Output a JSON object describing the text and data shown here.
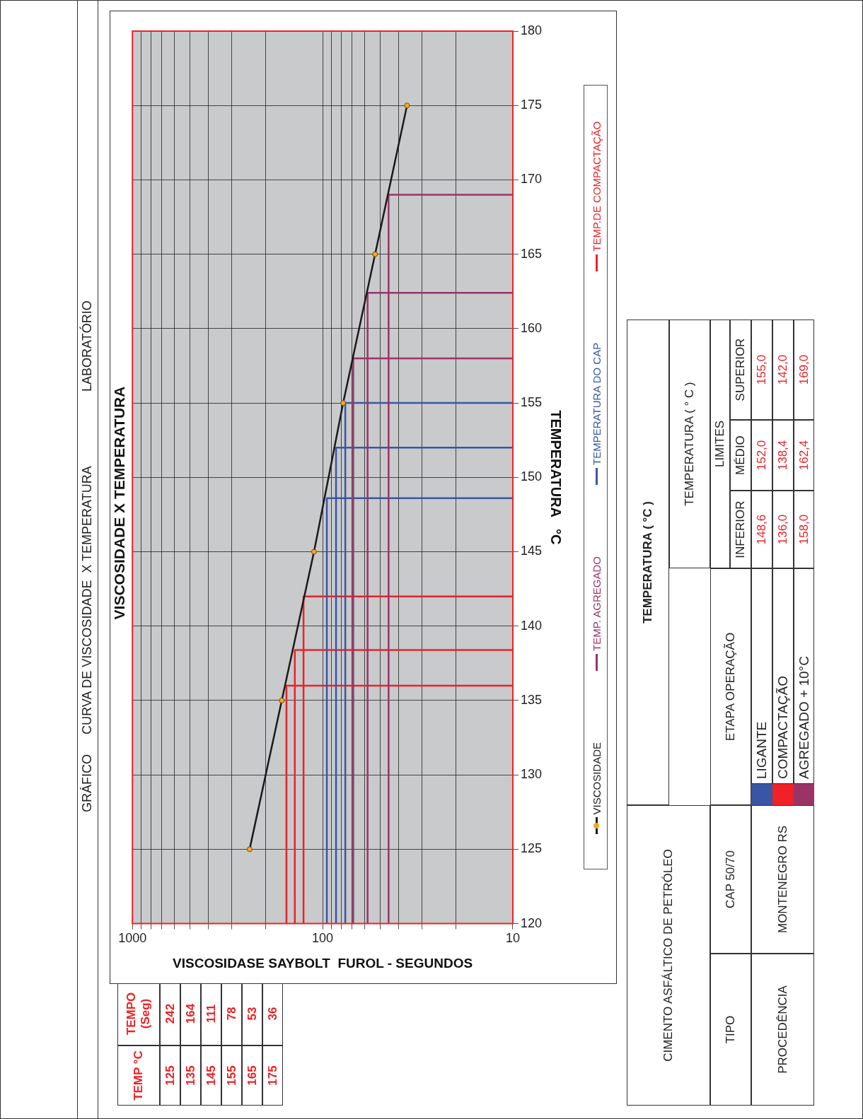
{
  "chart_data": {
    "type": "line",
    "title": "VISCOSIDADE X TEMPERATURA",
    "xlabel": "VISCOSIDASE SAYBOLT  FUROL - SEGUNDOS",
    "ylabel": "TEMPERATURA   °C",
    "log": "x",
    "grid": true,
    "legend": "right",
    "xlim": [
      1000,
      10
    ],
    "xticks": [
      1000,
      {
        "value": 900,
        "label": null
      },
      {
        "value": 800,
        "label": null
      },
      {
        "value": 700,
        "label": null
      },
      {
        "value": 600,
        "label": null
      },
      {
        "value": 500,
        "label": null
      },
      {
        "value": 400,
        "label": null
      },
      {
        "value": 300,
        "label": null
      },
      {
        "value": 200,
        "label": null
      },
      100,
      {
        "value": 90,
        "label": null
      },
      {
        "value": 80,
        "label": null
      },
      {
        "value": 70,
        "label": null
      },
      {
        "value": 60,
        "label": null
      },
      {
        "value": 50,
        "label": null
      },
      {
        "value": 40,
        "label": null
      },
      {
        "value": 30,
        "label": null
      },
      {
        "value": 20,
        "label": null
      },
      10
    ],
    "ylim": [
      120,
      180
    ],
    "yticks": [
      120,
      125,
      130,
      135,
      140,
      145,
      150,
      155,
      160,
      165,
      170,
      175,
      180
    ],
    "series": [
      {
        "name": "VISCOSIDADE",
        "color": "#1a1a1a",
        "marker": "circle",
        "x": [
          242,
          164,
          111,
          78,
          53,
          36
        ],
        "values": [
          125,
          135,
          145,
          155,
          165,
          175
        ]
      },
      {
        "name": "TEMP. AGREGADO",
        "color": "#9b3367",
        "marker": "none",
        "x": [
          10,
          69,
          69
        ],
        "values": [
          158,
          158,
          120
        ]
      },
      {
        "color": "#9b3367",
        "marker": "none",
        "x": [
          10,
          58,
          58
        ],
        "values": [
          162.4,
          162.4,
          120
        ]
      },
      {
        "color": "#9b3367",
        "marker": "none",
        "x": [
          10,
          45,
          45
        ],
        "values": [
          169,
          169,
          120
        ]
      },
      {
        "name": "TEMPERATURA DO CAP",
        "color": "#3a55a5",
        "marker": "none",
        "x": [
          10,
          95,
          95
        ],
        "values": [
          148.6,
          148.6,
          120
        ]
      },
      {
        "color": "#3a55a5",
        "marker": "none",
        "x": [
          10,
          85,
          85
        ],
        "values": [
          152,
          152,
          120
        ]
      },
      {
        "color": "#3a55a5",
        "marker": "none",
        "x": [
          10,
          76,
          76
        ],
        "values": [
          155,
          155,
          120
        ]
      },
      {
        "name": "TEMP.DE COMPACTAÇÃO",
        "color": "#ee2227",
        "marker": "none",
        "x": [
          10,
          155,
          155
        ],
        "values": [
          136,
          136,
          120
        ]
      },
      {
        "color": "#ee2227",
        "marker": "none",
        "x": [
          10,
          140,
          140
        ],
        "values": [
          138.4,
          138.4,
          120
        ]
      },
      {
        "color": "#ee2227",
        "marker": "none",
        "x": [
          10,
          126,
          126
        ],
        "values": [
          142,
          142,
          120
        ]
      }
    ],
    "annotations": [
      "GRÁFICO",
      "CURVA DE VISCOSIDADE  X TEMPERATURA",
      "LABORATÓRIO",
      "TEMP °C",
      "TEMPO (Seg)",
      "CIMENTO ASFÁLTICO DE PETRÓLEO",
      "TIPO",
      "CAP 50/70",
      "PROCEDÊNCIA",
      "MONTENEGRO RS",
      "TEMPERATURA ( °C )",
      "ETAPA OPERAÇÃO",
      "TEMPERATURA ( ° C )",
      "LIMITES",
      "INFERIOR",
      "MÉDIO",
      "SUPERIOR",
      "LIGANTE",
      "COMPACTAÇÃO",
      "AGREGADO + 10°C",
      "148,6",
      "152,0",
      "155,0",
      "136,0",
      "138,4",
      "142,0",
      "158,0",
      "162,4",
      "169,0",
      "125",
      "242",
      "135",
      "164",
      "145",
      "111",
      "155",
      "78",
      "165",
      "53",
      "175",
      "36"
    ]
  }
}
